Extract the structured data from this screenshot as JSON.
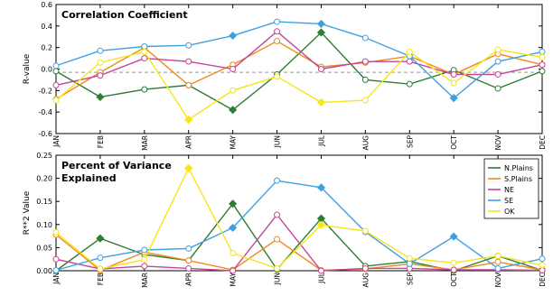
{
  "chart_data": [
    {
      "type": "line",
      "title": "Correlation Coefficient",
      "ylabel": "R-value",
      "ylim": [
        -0.6,
        0.6
      ],
      "yticks": [
        "0.6",
        "0.4",
        "0.2",
        "0.0",
        "-0.2",
        "-0.4",
        "-0.6"
      ],
      "yticks_values": [
        0.6,
        0.4,
        0.2,
        0.0,
        -0.2,
        -0.4,
        -0.6
      ],
      "reference_line": -0.03,
      "categories": [
        "JAN",
        "FEB",
        "MAR",
        "APR",
        "MAY",
        "JUN",
        "JUL",
        "AUG",
        "SEP",
        "OCT",
        "NOV",
        "DEC"
      ],
      "series": [
        {
          "name": "N.Plains",
          "color": "#2e7d32",
          "values": [
            -0.02,
            -0.26,
            -0.19,
            -0.15,
            -0.38,
            -0.05,
            0.34,
            -0.1,
            -0.14,
            -0.01,
            -0.18,
            -0.02
          ]
        },
        {
          "name": "S.Plains",
          "color": "#ef8a1c",
          "values": [
            -0.28,
            -0.03,
            0.2,
            -0.15,
            0.04,
            0.26,
            0.02,
            0.06,
            0.12,
            -0.05,
            0.14,
            0.04
          ]
        },
        {
          "name": "NE",
          "color": "#c4449a",
          "values": [
            -0.15,
            -0.06,
            0.1,
            0.07,
            0.0,
            0.35,
            0.0,
            0.07,
            0.07,
            -0.05,
            -0.05,
            0.04
          ]
        },
        {
          "name": "SE",
          "color": "#3fa0e0",
          "values": [
            0.03,
            0.17,
            0.21,
            0.22,
            0.31,
            0.44,
            0.42,
            0.29,
            0.12,
            -0.27,
            0.07,
            0.16
          ]
        },
        {
          "name": "OK",
          "color": "#f6e41c",
          "values": [
            -0.29,
            0.06,
            0.16,
            -0.47,
            -0.2,
            -0.07,
            -0.31,
            -0.29,
            0.16,
            -0.13,
            0.18,
            0.11
          ]
        }
      ],
      "grid": false
    },
    {
      "type": "line",
      "title": "Percent of Variance Explained",
      "title_lines": [
        "Percent of Variance",
        "Explained"
      ],
      "ylabel": "R**2 Value",
      "ylim": [
        0.0,
        0.25
      ],
      "yticks": [
        "0.25",
        "0.20",
        "0.15",
        "0.10",
        "0.05",
        "0.00"
      ],
      "yticks_values": [
        0.25,
        0.2,
        0.15,
        0.1,
        0.05,
        0.0
      ],
      "categories": [
        "JAN",
        "FEB",
        "MAR",
        "APR",
        "MAY",
        "JUN",
        "JUL",
        "AUG",
        "SEP",
        "OCT",
        "NOV",
        "DEC"
      ],
      "legend_position": "top-right",
      "series": [
        {
          "name": "N.Plains",
          "color": "#2e7d32",
          "values": [
            0.0,
            0.07,
            0.035,
            0.022,
            0.145,
            0.003,
            0.113,
            0.01,
            0.02,
            0.0,
            0.032,
            0.001
          ]
        },
        {
          "name": "S.Plains",
          "color": "#ef8a1c",
          "values": [
            0.078,
            0.001,
            0.04,
            0.022,
            0.002,
            0.068,
            0.001,
            0.004,
            0.015,
            0.002,
            0.019,
            0.002
          ]
        },
        {
          "name": "NE",
          "color": "#c4449a",
          "values": [
            0.025,
            0.004,
            0.01,
            0.005,
            0.0,
            0.121,
            0.0,
            0.005,
            0.005,
            0.002,
            0.002,
            0.001
          ]
        },
        {
          "name": "SE",
          "color": "#3fa0e0",
          "values": [
            0.001,
            0.028,
            0.045,
            0.048,
            0.093,
            0.195,
            0.18,
            0.084,
            0.015,
            0.074,
            0.005,
            0.026
          ]
        },
        {
          "name": "OK",
          "color": "#f6e41c",
          "values": [
            0.083,
            0.004,
            0.024,
            0.222,
            0.038,
            0.005,
            0.099,
            0.086,
            0.027,
            0.017,
            0.032,
            0.012
          ]
        }
      ],
      "grid": false
    }
  ]
}
